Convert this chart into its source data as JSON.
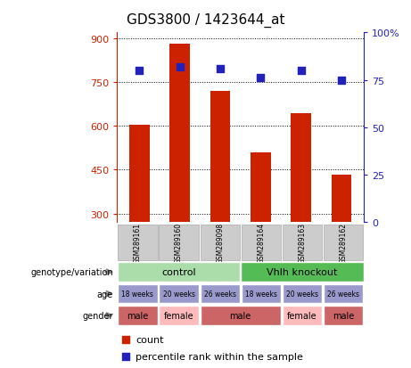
{
  "title": "GDS3800 / 1423644_at",
  "samples": [
    "GSM289161",
    "GSM289160",
    "GSM289098",
    "GSM289164",
    "GSM289163",
    "GSM289162"
  ],
  "counts": [
    603,
    880,
    720,
    510,
    643,
    432
  ],
  "percentile_ranks": [
    80,
    82,
    81,
    76,
    80,
    75
  ],
  "ylim_left": [
    270,
    920
  ],
  "ylim_right": [
    0,
    100
  ],
  "yticks_left": [
    300,
    450,
    600,
    750,
    900
  ],
  "yticks_right": [
    0,
    25,
    50,
    75,
    100
  ],
  "bar_color": "#CC2200",
  "dot_color": "#2222BB",
  "bar_width": 0.5,
  "genotype_labels": [
    [
      "control",
      3
    ],
    [
      "Vhlh knockout",
      3
    ]
  ],
  "genotype_colors": [
    "#AADDAA",
    "#55BB55"
  ],
  "age_labels": [
    "18 weeks",
    "20 weeks",
    "26 weeks",
    "18 weeks",
    "20 weeks",
    "26 weeks"
  ],
  "age_color": "#9999CC",
  "gender_labels": [
    "male",
    "female",
    "male",
    "male",
    "female",
    "male"
  ],
  "gender_male_color": "#CC6666",
  "gender_female_color": "#FFBBBB",
  "sample_box_color": "#CCCCCC",
  "sample_box_edge": "#AAAAAA"
}
